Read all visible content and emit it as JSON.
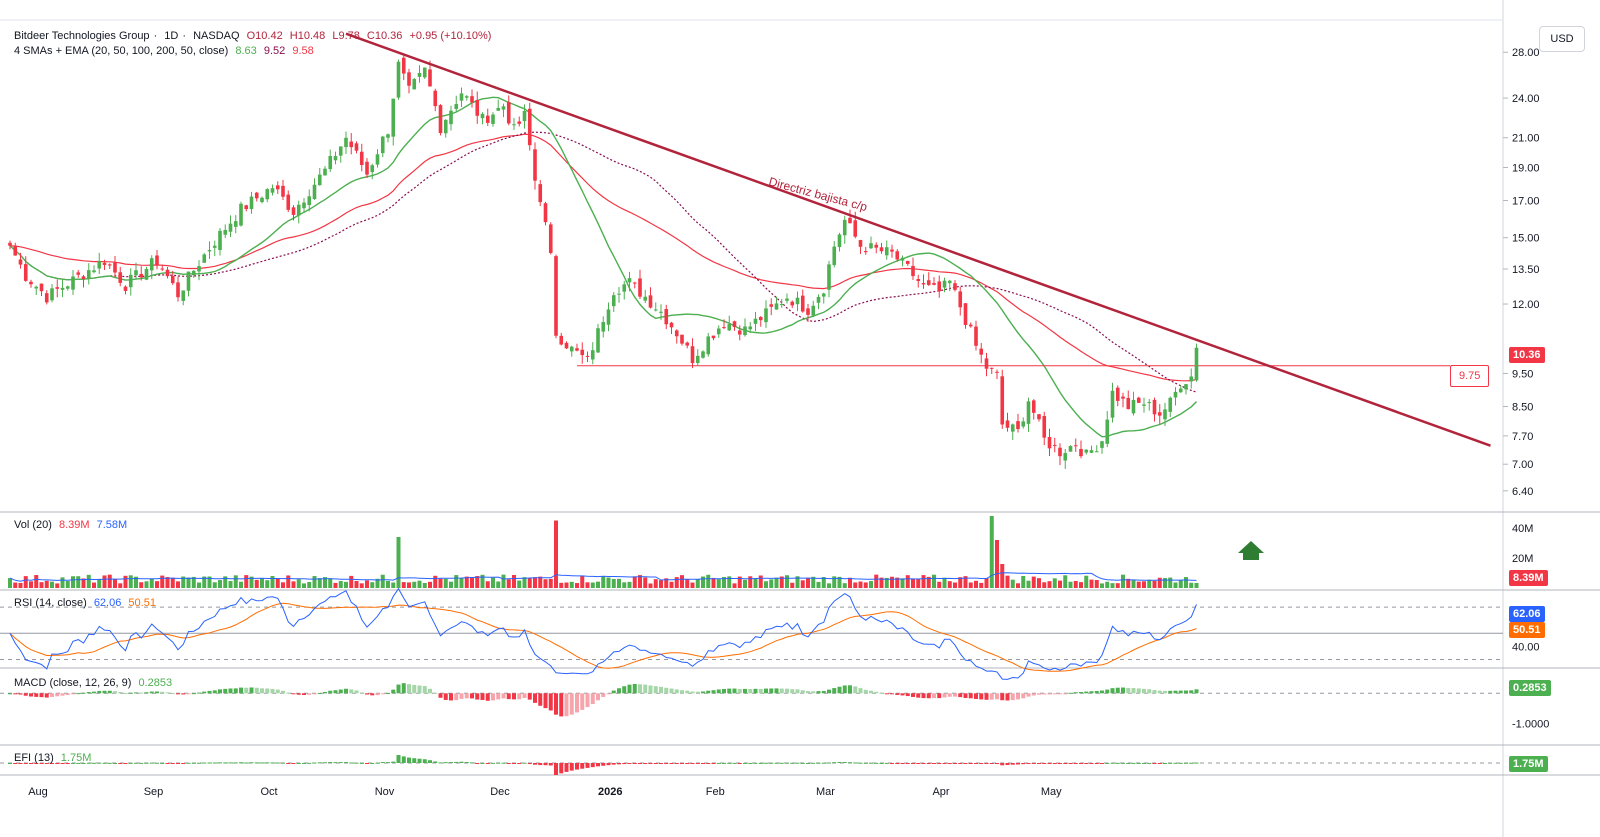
{
  "currency_label": "USD",
  "header": {
    "symbol": "Bitdeer Technologies Group",
    "interval": "1D",
    "exchange": "NASDAQ",
    "ohlc": {
      "o": "O10.42",
      "h": "H10.48",
      "l": "L9.78",
      "c": "C10.36",
      "chg": "+0.95 (+10.10%)"
    },
    "ma_title": "4 SMAs + EMA (20, 50, 100, 200, 50, close)",
    "ma_values": [
      "8.63",
      "9.52",
      "9.58"
    ]
  },
  "price_tags": {
    "last": "10.36",
    "level": "9.75"
  },
  "annotation": "Directriz bajista c/p",
  "colors": {
    "up": "#4caf50",
    "down": "#f23645",
    "sma20": "#4caf50",
    "sma50": "#880e4f",
    "ema50": "#f23645",
    "trend": "#b2243c",
    "rsi": "#2962ff",
    "rsi_ma": "#ff6d00",
    "vol_ma": "#2962ff"
  },
  "chart_data": [
    {
      "type": "candlestick",
      "title": "Bitdeer Technologies Group · 1D · NASDAQ",
      "yscale": "log",
      "ylim": [
        6.0,
        31.0
      ],
      "y_ticks": [
        "28.00",
        "24.00",
        "21.00",
        "19.00",
        "17.00",
        "15.00",
        "13.50",
        "12.00",
        "9.50",
        "8.50",
        "7.70",
        "7.00",
        "6.40"
      ],
      "x_tick_labels": [
        "Aug",
        "Sep",
        "Oct",
        "Nov",
        "Dec",
        "2026",
        "Feb",
        "Mar",
        "Apr",
        "May"
      ],
      "anchors": [
        {
          "d": 0,
          "p": 14.6
        },
        {
          "d": 3,
          "p": 13.2
        },
        {
          "d": 7,
          "p": 12.3
        },
        {
          "d": 12,
          "p": 13.0
        },
        {
          "d": 18,
          "p": 13.9
        },
        {
          "d": 22,
          "p": 12.8
        },
        {
          "d": 28,
          "p": 13.9
        },
        {
          "d": 32,
          "p": 12.4
        },
        {
          "d": 38,
          "p": 14.5
        },
        {
          "d": 44,
          "p": 16.5
        },
        {
          "d": 50,
          "p": 17.8
        },
        {
          "d": 54,
          "p": 16.4
        },
        {
          "d": 60,
          "p": 18.8
        },
        {
          "d": 64,
          "p": 21.0
        },
        {
          "d": 68,
          "p": 18.6
        },
        {
          "d": 72,
          "p": 21.6
        },
        {
          "d": 74,
          "p": 26.8
        },
        {
          "d": 76,
          "p": 24.5
        },
        {
          "d": 79,
          "p": 26.3
        },
        {
          "d": 82,
          "p": 21.8
        },
        {
          "d": 86,
          "p": 24.5
        },
        {
          "d": 90,
          "p": 22.3
        },
        {
          "d": 94,
          "p": 23.4
        },
        {
          "d": 96,
          "p": 21.5
        },
        {
          "d": 98,
          "p": 22.6
        },
        {
          "d": 100,
          "p": 18.2
        },
        {
          "d": 101,
          "p": 17.2
        },
        {
          "d": 103,
          "p": 14.0
        },
        {
          "d": 104,
          "p": 10.9
        },
        {
          "d": 107,
          "p": 10.3
        },
        {
          "d": 110,
          "p": 9.9
        },
        {
          "d": 112,
          "p": 10.9
        },
        {
          "d": 115,
          "p": 12.6
        },
        {
          "d": 118,
          "p": 12.9
        },
        {
          "d": 121,
          "p": 12.3
        },
        {
          "d": 124,
          "p": 11.7
        },
        {
          "d": 127,
          "p": 10.9
        },
        {
          "d": 130,
          "p": 10.0
        },
        {
          "d": 133,
          "p": 10.7
        },
        {
          "d": 136,
          "p": 11.3
        },
        {
          "d": 140,
          "p": 11.0
        },
        {
          "d": 144,
          "p": 11.6
        },
        {
          "d": 148,
          "p": 12.3
        },
        {
          "d": 152,
          "p": 11.8
        },
        {
          "d": 155,
          "p": 12.7
        },
        {
          "d": 157,
          "p": 14.6
        },
        {
          "d": 159,
          "p": 15.9
        },
        {
          "d": 162,
          "p": 14.6
        },
        {
          "d": 165,
          "p": 14.4
        },
        {
          "d": 168,
          "p": 14.2
        },
        {
          "d": 171,
          "p": 13.5
        },
        {
          "d": 174,
          "p": 12.7
        },
        {
          "d": 177,
          "p": 12.5
        },
        {
          "d": 179,
          "p": 12.9
        },
        {
          "d": 182,
          "p": 11.4
        },
        {
          "d": 184,
          "p": 10.4
        },
        {
          "d": 186,
          "p": 9.7
        },
        {
          "d": 188,
          "p": 9.4
        },
        {
          "d": 189,
          "p": 8.0
        },
        {
          "d": 192,
          "p": 7.8
        },
        {
          "d": 194,
          "p": 8.7
        },
        {
          "d": 197,
          "p": 7.6
        },
        {
          "d": 200,
          "p": 7.3
        },
        {
          "d": 203,
          "p": 7.5
        },
        {
          "d": 205,
          "p": 7.2
        },
        {
          "d": 208,
          "p": 7.6
        },
        {
          "d": 210,
          "p": 8.9
        },
        {
          "d": 213,
          "p": 8.5
        },
        {
          "d": 216,
          "p": 8.6
        },
        {
          "d": 219,
          "p": 8.3
        },
        {
          "d": 221,
          "p": 8.6
        },
        {
          "d": 223,
          "p": 9.2
        },
        {
          "d": 225,
          "p": 9.41
        },
        {
          "d": 226,
          "p": 10.36
        }
      ],
      "trendline": {
        "label": "Directriz bajista c/p",
        "from": {
          "d": 64,
          "p": 29.8
        },
        "to": {
          "d": 282,
          "p": 7.45
        }
      },
      "horizontal_level": {
        "value": 9.75,
        "from_day": 108
      },
      "legend": [
        "4 SMAs + EMA (20, 50, 100, 200, 50, close)"
      ]
    },
    {
      "type": "bar",
      "title": "Vol (20)",
      "values_label": [
        "8.39M",
        "7.58M"
      ],
      "y_ticks": [
        "40M",
        "20M"
      ],
      "ylim": [
        0,
        48
      ],
      "spikes": [
        {
          "d": 74,
          "v": 34
        },
        {
          "d": 104,
          "v": 45
        },
        {
          "d": 187,
          "v": 48
        },
        {
          "d": 188,
          "v": 32
        },
        {
          "d": 189,
          "v": 16
        }
      ],
      "last": 8.39,
      "ma_last": 7.58
    },
    {
      "type": "line",
      "title": "RSI (14, close)",
      "values_label": [
        "62.06",
        "50.51"
      ],
      "y_ticks": [
        "40.00"
      ],
      "ylim": [
        25,
        80
      ],
      "bands": [
        70,
        50,
        30
      ],
      "last": 62.06,
      "ma_last": 50.51
    },
    {
      "type": "bar",
      "title": "MACD (close, 12, 26, 9)",
      "values_label": [
        "0.2853"
      ],
      "y_ticks": [
        "-1.0000"
      ],
      "ylim": [
        -1.6,
        0.7
      ],
      "last": 0.2853
    },
    {
      "type": "bar",
      "title": "EFI (13)",
      "values_label": [
        "1.75M"
      ],
      "last": 1.75
    }
  ]
}
